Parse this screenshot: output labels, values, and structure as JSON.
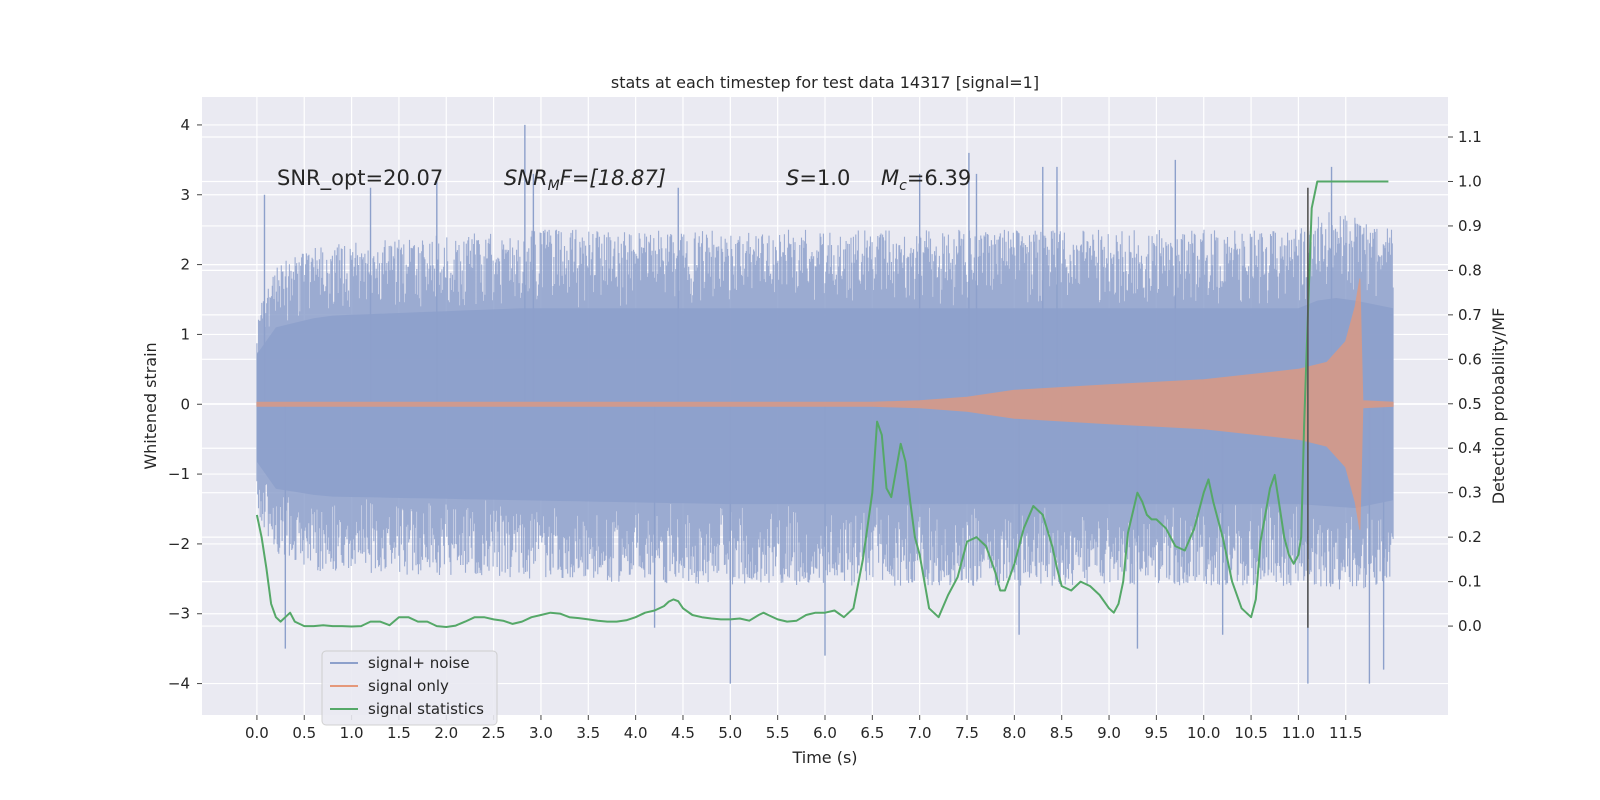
{
  "chart_data": {
    "type": "line",
    "title": "stats at each timestep for test data 14317 [signal=1]",
    "xlabel": "Time (s)",
    "ylabel": "Whitened strain",
    "ylabel_right": "Detection probability/MF",
    "xlim": [
      -0.58,
      12.58
    ],
    "ylim": [
      -4.45,
      4.4
    ],
    "ylim_right": [
      -0.2,
      1.19
    ],
    "x_ticks": [
      0.0,
      0.5,
      1.0,
      1.5,
      2.0,
      2.5,
      3.0,
      3.5,
      4.0,
      4.5,
      5.0,
      5.5,
      6.0,
      6.5,
      7.0,
      7.5,
      8.0,
      8.5,
      9.0,
      9.5,
      10.0,
      10.5,
      11.0,
      11.5
    ],
    "x_tick_labels": [
      "0.0",
      "0.5",
      "1.0",
      "1.5",
      "2.0",
      "2.5",
      "3.0",
      "3.5",
      "4.0",
      "4.5",
      "5.0",
      "5.5",
      "6.0",
      "6.5",
      "7.0",
      "7.5",
      "8.0",
      "8.5",
      "9.0",
      "9.5",
      "10.0",
      "10.5",
      "11.0",
      "11.5"
    ],
    "y_ticks": [
      4,
      3,
      2,
      1,
      0,
      -1,
      -2,
      -3,
      -4
    ],
    "y_tick_labels": [
      "4",
      "3",
      "2",
      "1",
      "0",
      "−1",
      "−2",
      "−3",
      "−4"
    ],
    "y_ticks_right": [
      1.1,
      1.0,
      0.9,
      0.8,
      0.7,
      0.6,
      0.5,
      0.4,
      0.3,
      0.2,
      0.1,
      0.0
    ],
    "y_tick_labels_right": [
      "1.1",
      "1.0",
      "0.9",
      "0.8",
      "0.7",
      "0.6",
      "0.5",
      "0.4",
      "0.3",
      "0.2",
      "0.1",
      "0.0"
    ],
    "grid": true,
    "legend_position": "lower-left",
    "annotations": {
      "snr_opt": "SNR_opt=20.07",
      "snr_mf_base": "SNR",
      "snr_mf_sub": "M",
      "snr_mf_rest": "F=[18.87]",
      "s_symbol": "S",
      "s_value": "=1.0",
      "mc_symbol": "M",
      "mc_sub": "c",
      "mc_value": "=6.39"
    },
    "series": [
      {
        "name": "signal+ noise",
        "axis": "left",
        "color": "#8da0cb",
        "x_range": [
          0.0,
          12.0
        ],
        "upper_envelope": [
          [
            0.0,
            1.3
          ],
          [
            0.2,
            2.0
          ],
          [
            0.7,
            2.3
          ],
          [
            2.8,
            2.5
          ],
          [
            5.0,
            2.5
          ],
          [
            7.0,
            2.5
          ],
          [
            10.0,
            2.5
          ],
          [
            11.0,
            2.5
          ],
          [
            11.3,
            2.8
          ],
          [
            11.6,
            2.7
          ],
          [
            12.0,
            2.5
          ]
        ],
        "lower_envelope": [
          [
            0.0,
            -1.5
          ],
          [
            0.2,
            -2.2
          ],
          [
            0.7,
            -2.4
          ],
          [
            2.8,
            -2.5
          ],
          [
            5.0,
            -2.6
          ],
          [
            7.0,
            -2.6
          ],
          [
            10.0,
            -2.6
          ],
          [
            11.0,
            -2.6
          ],
          [
            11.6,
            -2.7
          ],
          [
            12.0,
            -2.5
          ]
        ],
        "spikes": [
          [
            0.08,
            3.0
          ],
          [
            0.3,
            -3.5
          ],
          [
            1.2,
            3.1
          ],
          [
            1.9,
            3.2
          ],
          [
            2.83,
            4.0
          ],
          [
            2.92,
            3.3
          ],
          [
            4.2,
            -3.2
          ],
          [
            4.45,
            3.1
          ],
          [
            5.0,
            -4.0
          ],
          [
            6.0,
            -3.6
          ],
          [
            7.0,
            3.3
          ],
          [
            7.52,
            3.6
          ],
          [
            7.6,
            3.3
          ],
          [
            8.05,
            -3.3
          ],
          [
            8.3,
            3.4
          ],
          [
            8.45,
            3.4
          ],
          [
            9.3,
            -3.5
          ],
          [
            9.7,
            3.5
          ],
          [
            10.2,
            -3.3
          ],
          [
            11.1,
            -4.0
          ],
          [
            11.35,
            3.4
          ],
          [
            11.75,
            -4.0
          ],
          [
            11.9,
            -3.8
          ]
        ]
      },
      {
        "name": "signal only",
        "axis": "left",
        "color": "#e5987a",
        "amplitude_envelope": [
          [
            0.0,
            0.03
          ],
          [
            6.5,
            0.03
          ],
          [
            7.0,
            0.05
          ],
          [
            7.5,
            0.1
          ],
          [
            8.0,
            0.2
          ],
          [
            9.0,
            0.28
          ],
          [
            10.0,
            0.35
          ],
          [
            11.0,
            0.5
          ],
          [
            11.3,
            0.6
          ],
          [
            11.5,
            0.9
          ],
          [
            11.6,
            1.4
          ],
          [
            11.65,
            1.8
          ],
          [
            11.68,
            0.05
          ],
          [
            12.0,
            0.03
          ]
        ]
      },
      {
        "name": "signal statistics",
        "axis": "right",
        "color": "#55a868",
        "x": [
          0.0,
          0.05,
          0.1,
          0.15,
          0.2,
          0.25,
          0.3,
          0.35,
          0.4,
          0.5,
          0.6,
          0.7,
          0.8,
          0.9,
          1.0,
          1.1,
          1.2,
          1.3,
          1.4,
          1.5,
          1.6,
          1.7,
          1.8,
          1.9,
          2.0,
          2.1,
          2.2,
          2.3,
          2.4,
          2.5,
          2.6,
          2.7,
          2.8,
          2.9,
          3.0,
          3.1,
          3.2,
          3.3,
          3.4,
          3.5,
          3.6,
          3.7,
          3.8,
          3.9,
          4.0,
          4.1,
          4.2,
          4.3,
          4.35,
          4.4,
          4.45,
          4.5,
          4.6,
          4.7,
          4.8,
          4.9,
          5.0,
          5.1,
          5.2,
          5.3,
          5.35,
          5.4,
          5.5,
          5.6,
          5.7,
          5.8,
          5.9,
          6.0,
          6.1,
          6.2,
          6.3,
          6.4,
          6.5,
          6.55,
          6.6,
          6.65,
          6.7,
          6.75,
          6.8,
          6.85,
          6.9,
          6.95,
          7.0,
          7.05,
          7.1,
          7.2,
          7.3,
          7.4,
          7.5,
          7.6,
          7.7,
          7.8,
          7.85,
          7.9,
          8.0,
          8.1,
          8.2,
          8.3,
          8.4,
          8.45,
          8.5,
          8.6,
          8.7,
          8.8,
          8.9,
          9.0,
          9.05,
          9.1,
          9.15,
          9.2,
          9.3,
          9.35,
          9.4,
          9.45,
          9.5,
          9.6,
          9.7,
          9.8,
          9.9,
          10.0,
          10.05,
          10.1,
          10.15,
          10.2,
          10.3,
          10.4,
          10.5,
          10.55,
          10.6,
          10.7,
          10.75,
          10.8,
          10.85,
          10.9,
          10.95,
          11.0,
          11.03,
          11.06,
          11.1,
          11.14,
          11.18,
          11.2,
          11.3,
          11.4,
          11.5,
          11.6,
          11.7,
          11.8,
          11.9,
          11.95
        ],
        "y": [
          0.25,
          0.2,
          0.13,
          0.05,
          0.02,
          0.01,
          0.02,
          0.03,
          0.01,
          0.0,
          0.0,
          0.002,
          0.0,
          0.0,
          -0.001,
          0.0,
          0.01,
          0.01,
          0.002,
          0.02,
          0.02,
          0.01,
          0.01,
          0.0,
          -0.002,
          0.001,
          0.01,
          0.02,
          0.02,
          0.015,
          0.012,
          0.005,
          0.01,
          0.02,
          0.025,
          0.03,
          0.028,
          0.02,
          0.018,
          0.015,
          0.012,
          0.01,
          0.01,
          0.013,
          0.02,
          0.03,
          0.035,
          0.045,
          0.055,
          0.06,
          0.056,
          0.04,
          0.025,
          0.02,
          0.017,
          0.015,
          0.015,
          0.017,
          0.012,
          0.025,
          0.03,
          0.025,
          0.015,
          0.01,
          0.012,
          0.025,
          0.03,
          0.03,
          0.035,
          0.02,
          0.04,
          0.15,
          0.3,
          0.46,
          0.43,
          0.31,
          0.29,
          0.35,
          0.41,
          0.37,
          0.28,
          0.2,
          0.16,
          0.1,
          0.04,
          0.02,
          0.07,
          0.11,
          0.19,
          0.2,
          0.18,
          0.12,
          0.08,
          0.08,
          0.14,
          0.22,
          0.27,
          0.25,
          0.18,
          0.13,
          0.09,
          0.08,
          0.1,
          0.09,
          0.07,
          0.04,
          0.03,
          0.05,
          0.1,
          0.21,
          0.3,
          0.28,
          0.25,
          0.24,
          0.24,
          0.22,
          0.18,
          0.17,
          0.22,
          0.3,
          0.33,
          0.28,
          0.24,
          0.2,
          0.1,
          0.04,
          0.02,
          0.06,
          0.19,
          0.31,
          0.34,
          0.27,
          0.2,
          0.16,
          0.14,
          0.16,
          0.2,
          0.45,
          0.7,
          0.94,
          0.98,
          1.0,
          1.0,
          1.0,
          1.0,
          1.0,
          1.0,
          1.0,
          1.0,
          1.0
        ]
      }
    ],
    "vertical_marker": {
      "x": 11.1,
      "y_range": [
        -3.2,
        3.1
      ],
      "color": "#555555"
    }
  },
  "legend": {
    "items": [
      {
        "label": "signal+ noise",
        "color": "#8da0cb"
      },
      {
        "label": "signal only",
        "color": "#e5987a"
      },
      {
        "label": "signal statistics",
        "color": "#55a868"
      }
    ]
  }
}
